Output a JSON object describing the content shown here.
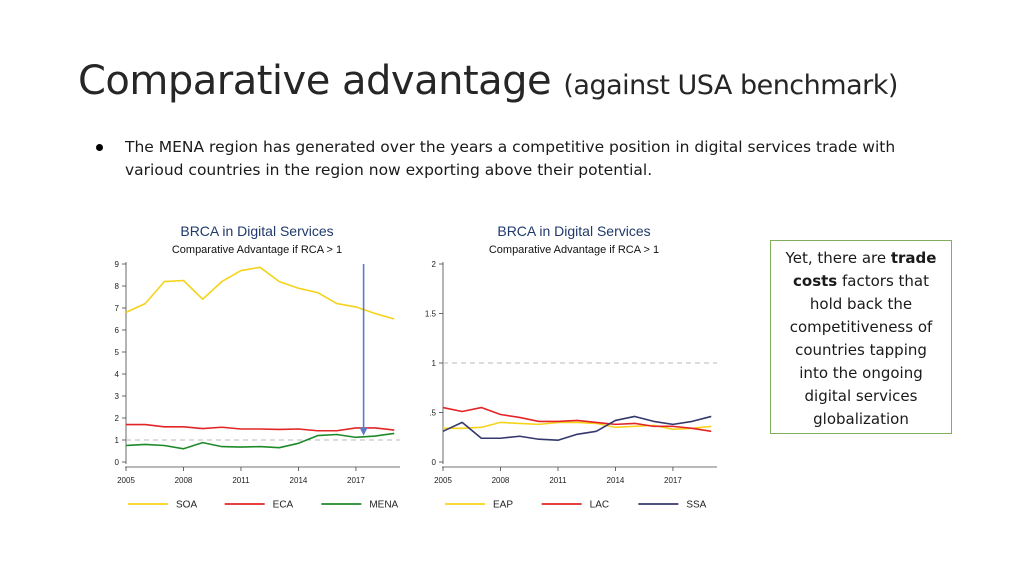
{
  "slide": {
    "title": "Comparative advantage",
    "subtitle": "(against USA benchmark)",
    "bullet": "The MENA region has generated over the years a competitive position in digital services trade with varioud countries in the region now exporting above their potential.",
    "callout": {
      "part1": "Yet, there are ",
      "bold": "trade costs",
      "part2": " factors that hold back the competitiveness of countries tapping into the ongoing digital services globalization"
    }
  },
  "chart_data": [
    {
      "type": "line",
      "title": "BRCA in Digital Services",
      "subtitle": "Comparative Advantage if RCA > 1",
      "x": [
        2005,
        2006,
        2007,
        2008,
        2009,
        2010,
        2011,
        2012,
        2013,
        2014,
        2015,
        2016,
        2017,
        2018,
        2019
      ],
      "xticks": [
        2005,
        2008,
        2011,
        2014,
        2017
      ],
      "xlim": [
        2005,
        2019.3
      ],
      "ylim": [
        0,
        9
      ],
      "yticks": [
        0,
        1,
        2,
        3,
        4,
        5,
        6,
        7,
        8,
        9
      ],
      "reference_line": 1,
      "marker_year": 2017.4,
      "series": [
        {
          "name": "SOA",
          "color": "#f5d31a",
          "values": [
            6.8,
            7.2,
            8.2,
            8.25,
            7.4,
            8.2,
            8.7,
            8.85,
            8.2,
            7.9,
            7.7,
            7.2,
            7.05,
            6.75,
            6.5
          ]
        },
        {
          "name": "ECA",
          "color": "#e32526",
          "values": [
            1.7,
            1.7,
            1.6,
            1.6,
            1.52,
            1.58,
            1.5,
            1.5,
            1.48,
            1.5,
            1.42,
            1.42,
            1.55,
            1.55,
            1.45
          ]
        },
        {
          "name": "MENA",
          "color": "#1f8a2a",
          "values": [
            0.75,
            0.8,
            0.75,
            0.6,
            0.88,
            0.7,
            0.68,
            0.7,
            0.65,
            0.85,
            1.2,
            1.25,
            1.12,
            1.18,
            1.3
          ]
        }
      ]
    },
    {
      "type": "line",
      "title": "BRCA in Digital Services",
      "subtitle": "Comparative Advantage if RCA > 1",
      "x": [
        2005,
        2006,
        2007,
        2008,
        2009,
        2010,
        2011,
        2012,
        2013,
        2014,
        2015,
        2016,
        2017,
        2018,
        2019
      ],
      "xticks": [
        2005,
        2008,
        2011,
        2014,
        2017
      ],
      "xlim": [
        2005,
        2019.3
      ],
      "ylim": [
        0,
        2
      ],
      "yticks": [
        0,
        0.5,
        1,
        1.5,
        2
      ],
      "ytick_labels": [
        "0",
        ".5",
        "1",
        "1.5",
        "2"
      ],
      "reference_line": 1,
      "series": [
        {
          "name": "EAP",
          "color": "#f5d31a",
          "values": [
            0.34,
            0.34,
            0.35,
            0.4,
            0.39,
            0.38,
            0.4,
            0.4,
            0.39,
            0.35,
            0.36,
            0.37,
            0.33,
            0.34,
            0.36
          ]
        },
        {
          "name": "LAC",
          "color": "#e32526",
          "values": [
            0.55,
            0.51,
            0.55,
            0.48,
            0.45,
            0.41,
            0.41,
            0.42,
            0.4,
            0.38,
            0.39,
            0.36,
            0.36,
            0.34,
            0.31
          ]
        },
        {
          "name": "SSA",
          "color": "#34386b",
          "values": [
            0.31,
            0.4,
            0.24,
            0.24,
            0.26,
            0.23,
            0.22,
            0.28,
            0.31,
            0.42,
            0.46,
            0.41,
            0.38,
            0.41,
            0.46
          ]
        }
      ]
    }
  ]
}
